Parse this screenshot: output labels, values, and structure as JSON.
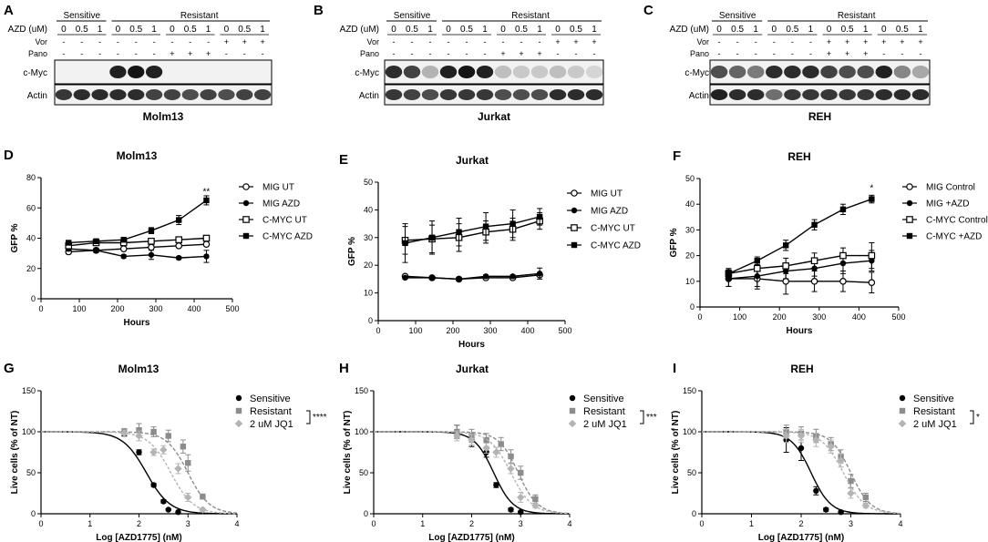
{
  "blots": [
    {
      "letter": "A",
      "title": "Molm13",
      "groups": [
        "Sensitive",
        "Resistant"
      ],
      "row_labels": [
        "AZD (uM)",
        "Vor",
        "Pano"
      ],
      "azd": [
        "0",
        "0.5",
        "1",
        "0",
        "0.5",
        "1",
        "0",
        "0.5",
        "1",
        "0",
        "0.5",
        "1"
      ],
      "vor": [
        "-",
        "-",
        "-",
        "-",
        "-",
        "-",
        "-",
        "-",
        "-",
        "+",
        "+",
        "+"
      ],
      "pano": [
        "-",
        "-",
        "-",
        "-",
        "-",
        "-",
        "+",
        "+",
        "+",
        "-",
        "-",
        "-"
      ],
      "bands": [
        "c-Myc",
        "Actin"
      ],
      "cmyc_intensity": [
        0,
        0,
        0,
        0.9,
        0.95,
        0.9,
        0,
        0,
        0,
        0,
        0,
        0
      ],
      "actin_intensity": [
        0.8,
        0.85,
        0.85,
        0.85,
        0.85,
        0.75,
        0.75,
        0.7,
        0.75,
        0.7,
        0.75,
        0.75
      ]
    },
    {
      "letter": "B",
      "title": "Jurkat",
      "groups": [
        "Sensitive",
        "Resistant"
      ],
      "row_labels": [
        "AZD (uM)",
        "Vor",
        "Pano"
      ],
      "azd": [
        "0",
        "0.5",
        "1",
        "0",
        "0.5",
        "1",
        "0",
        "0.5",
        "1",
        "0",
        "0.5",
        "1"
      ],
      "vor": [
        "-",
        "-",
        "-",
        "-",
        "-",
        "-",
        "-",
        "-",
        "-",
        "+",
        "+",
        "+"
      ],
      "pano": [
        "-",
        "-",
        "-",
        "-",
        "-",
        "-",
        "+",
        "+",
        "+",
        "-",
        "-",
        "-"
      ],
      "bands": [
        "c-Myc",
        "Actin"
      ],
      "cmyc_intensity": [
        0.85,
        0.75,
        0.25,
        0.9,
        0.95,
        0.9,
        0.2,
        0.15,
        0.15,
        0.2,
        0.15,
        0.1
      ],
      "actin_intensity": [
        0.8,
        0.75,
        0.7,
        0.8,
        0.8,
        0.8,
        0.7,
        0.7,
        0.7,
        0.85,
        0.85,
        0.85
      ]
    },
    {
      "letter": "C",
      "title": "REH",
      "groups": [
        "Sensitive",
        "Resistant"
      ],
      "row_labels": [
        "AZD (uM)",
        "Vor",
        "Pano"
      ],
      "azd": [
        "0",
        "0.5",
        "1",
        "0",
        "0.5",
        "1",
        "0",
        "0.5",
        "1",
        "0",
        "0.5",
        "1"
      ],
      "vor": [
        "-",
        "-",
        "-",
        "-",
        "-",
        "-",
        "+",
        "+",
        "+",
        "+",
        "+",
        "+"
      ],
      "pano": [
        "-",
        "-",
        "-",
        "-",
        "-",
        "-",
        "+",
        "+",
        "+",
        "-",
        "-",
        "-"
      ],
      "bands": [
        "c-Myc",
        "Actin"
      ],
      "cmyc_intensity": [
        0.7,
        0.6,
        0.5,
        0.85,
        0.85,
        0.85,
        0.75,
        0.7,
        0.7,
        0.9,
        0.45,
        0.3
      ],
      "actin_intensity": [
        0.9,
        0.85,
        0.85,
        0.55,
        0.8,
        0.8,
        0.8,
        0.8,
        0.8,
        0.85,
        0.85,
        0.85
      ]
    }
  ],
  "chart_data": [
    {
      "letter": "D",
      "type": "line",
      "title": "Molm13",
      "xlabel": "Hours",
      "ylabel": "GFP %",
      "xlim": [
        0,
        500
      ],
      "xticks": [
        0,
        100,
        200,
        300,
        400,
        500
      ],
      "ylim": [
        0,
        80
      ],
      "yticks": [
        0,
        20,
        40,
        60,
        80
      ],
      "x": [
        72,
        144,
        216,
        288,
        360,
        432
      ],
      "series": [
        {
          "name": "MIG UT",
          "marker": "circle-open",
          "values": [
            31,
            32,
            33,
            34,
            35,
            36
          ],
          "err": [
            1.5,
            1,
            1,
            1,
            1,
            1
          ]
        },
        {
          "name": "MIG AZD",
          "marker": "circle-filled",
          "values": [
            33,
            32,
            28,
            29,
            27,
            28
          ],
          "err": [
            1.5,
            1.5,
            1,
            3,
            1,
            4
          ]
        },
        {
          "name": "C-MYC UT",
          "marker": "square-open",
          "values": [
            35,
            37,
            37,
            38,
            39,
            40
          ],
          "err": [
            1.5,
            1,
            1,
            1,
            1,
            1
          ]
        },
        {
          "name": "C-MYC AZD",
          "marker": "square-filled",
          "values": [
            37,
            38,
            39,
            45,
            52,
            65
          ],
          "err": [
            1,
            1,
            1.5,
            2,
            3,
            3
          ]
        }
      ],
      "annotations": [
        {
          "x": 432,
          "y": 70,
          "text": "**"
        }
      ]
    },
    {
      "letter": "E",
      "type": "line",
      "title": "Jurkat",
      "xlabel": "Hours",
      "ylabel": "GFP %",
      "xlim": [
        0,
        500
      ],
      "xticks": [
        0,
        100,
        200,
        300,
        400,
        500
      ],
      "ylim": [
        0,
        50
      ],
      "yticks": [
        0,
        10,
        20,
        30,
        40,
        50
      ],
      "x": [
        72,
        144,
        216,
        288,
        360,
        432
      ],
      "series": [
        {
          "name": "MIG UT",
          "marker": "circle-open",
          "values": [
            16,
            15.5,
            15,
            15.5,
            15.5,
            16.5
          ],
          "err": [
            0.5,
            0.5,
            0.5,
            0.5,
            0.5,
            0.5
          ]
        },
        {
          "name": "MIG AZD",
          "marker": "circle-filled",
          "values": [
            15.5,
            15.5,
            15,
            16,
            16,
            17
          ],
          "err": [
            0.5,
            0.5,
            0.5,
            0.5,
            0.5,
            2
          ]
        },
        {
          "name": "C-MYC UT",
          "marker": "square-open",
          "values": [
            29,
            29.5,
            30,
            32,
            33,
            36
          ],
          "err": [
            5,
            5,
            5,
            4,
            4,
            3
          ]
        },
        {
          "name": "C-MYC AZD",
          "marker": "square-filled",
          "values": [
            28,
            30,
            32,
            34,
            35,
            37.5
          ],
          "err": [
            7,
            6,
            5,
            5,
            5,
            3
          ]
        }
      ],
      "annotations": []
    },
    {
      "letter": "F",
      "type": "line",
      "title": "REH",
      "xlabel": "Hours",
      "ylabel": "GFP %",
      "xlim": [
        0,
        500
      ],
      "xticks": [
        0,
        100,
        200,
        300,
        400,
        500
      ],
      "ylim": [
        0,
        50
      ],
      "yticks": [
        0,
        10,
        20,
        30,
        40,
        50
      ],
      "x": [
        72,
        144,
        216,
        288,
        360,
        432
      ],
      "series": [
        {
          "name": "MIG Control",
          "marker": "circle-open",
          "values": [
            11,
            11,
            10,
            10,
            10,
            9.5
          ],
          "err": [
            3,
            4,
            5,
            4,
            4,
            4
          ]
        },
        {
          "name": "MIG +AZD",
          "marker": "circle-filled",
          "values": [
            11,
            12,
            14,
            15,
            17,
            18
          ],
          "err": [
            3,
            4,
            3,
            3,
            4,
            4
          ]
        },
        {
          "name": "C-MYC Control",
          "marker": "square-open",
          "values": [
            13,
            15,
            16,
            18,
            20,
            20
          ],
          "err": [
            2,
            3,
            3,
            3,
            3,
            5
          ]
        },
        {
          "name": "C-MYC +AZD",
          "marker": "square-filled",
          "values": [
            13,
            18,
            24,
            32,
            38,
            42
          ],
          "err": [
            1.5,
            1.5,
            2,
            2,
            2,
            1.5
          ]
        }
      ],
      "annotations": [
        {
          "x": 432,
          "y": 46,
          "text": "*"
        }
      ]
    },
    {
      "letter": "G",
      "type": "scatter",
      "title": "Molm13",
      "xlabel": "Log [AZD1775] (nM)",
      "ylabel": "Live cells  (% of NT)",
      "xlim": [
        0,
        4
      ],
      "xticks": [
        0,
        1,
        2,
        3,
        4
      ],
      "ylim": [
        0,
        150
      ],
      "yticks": [
        0,
        50,
        100,
        150
      ],
      "series": [
        {
          "name": "Sensitive",
          "marker": "circle",
          "color": "#000000",
          "ec50": 2.15,
          "hill": 1.8,
          "x": [
            1.7,
            2.0,
            2.3,
            2.5,
            2.6,
            2.8
          ],
          "values": [
            98,
            75,
            35,
            15,
            5,
            2
          ],
          "err": [
            3,
            3,
            2,
            2,
            1,
            1
          ]
        },
        {
          "name": "Resistant",
          "marker": "square",
          "color": "#8c8c8c",
          "ec50": 3.0,
          "hill": 2.0,
          "x": [
            1.7,
            2.0,
            2.3,
            2.6,
            2.9,
            3.0,
            3.3
          ],
          "values": [
            100,
            102,
            100,
            95,
            82,
            62,
            21
          ],
          "err": [
            4,
            8,
            6,
            7,
            8,
            10,
            3
          ]
        },
        {
          "name": "2 uM JQ1",
          "marker": "diamond",
          "color": "#b4b4b4",
          "ec50": 2.65,
          "hill": 1.9,
          "x": [
            1.7,
            2.0,
            2.3,
            2.5,
            2.8,
            3.0,
            3.3
          ],
          "values": [
            98,
            95,
            75,
            78,
            55,
            20,
            5
          ],
          "err": [
            4,
            6,
            4,
            5,
            6,
            5,
            2
          ]
        }
      ],
      "significance": "****"
    },
    {
      "letter": "H",
      "type": "scatter",
      "title": "Jurkat",
      "xlabel": "Log [AZD1775] (nM)",
      "ylabel": "Live cells  (% of NT)",
      "xlim": [
        0,
        4
      ],
      "xticks": [
        0,
        1,
        2,
        3,
        4
      ],
      "ylim": [
        0,
        150
      ],
      "yticks": [
        0,
        50,
        100,
        150
      ],
      "series": [
        {
          "name": "Sensitive",
          "marker": "circle",
          "color": "#000000",
          "ec50": 2.45,
          "hill": 2.2,
          "x": [
            1.7,
            2.0,
            2.3,
            2.5,
            2.8,
            3.0
          ],
          "values": [
            100,
            90,
            75,
            35,
            5,
            2
          ],
          "err": [
            8,
            8,
            6,
            3,
            2,
            1
          ]
        },
        {
          "name": "Resistant",
          "marker": "square",
          "color": "#8c8c8c",
          "ec50": 2.95,
          "hill": 2.2,
          "x": [
            1.7,
            2.0,
            2.3,
            2.6,
            2.8,
            3.0,
            3.3
          ],
          "values": [
            100,
            95,
            90,
            85,
            70,
            50,
            18
          ],
          "err": [
            8,
            8,
            8,
            8,
            8,
            8,
            5
          ]
        },
        {
          "name": "2 uM JQ1",
          "marker": "diamond",
          "color": "#b4b4b4",
          "ec50": 2.8,
          "hill": 2.0,
          "x": [
            1.7,
            2.0,
            2.3,
            2.5,
            2.8,
            3.0,
            3.3
          ],
          "values": [
            95,
            90,
            80,
            75,
            55,
            20,
            10
          ],
          "err": [
            6,
            6,
            6,
            6,
            6,
            6,
            3
          ]
        }
      ],
      "significance": "***"
    },
    {
      "letter": "I",
      "type": "scatter",
      "title": "REH",
      "xlabel": "Log [AZD1775] (nM)",
      "ylabel": "Live cells  (% of NT)",
      "xlim": [
        0,
        4
      ],
      "xticks": [
        0,
        1,
        2,
        3,
        4
      ],
      "ylim": [
        0,
        150
      ],
      "yticks": [
        0,
        50,
        100,
        150
      ],
      "series": [
        {
          "name": "Sensitive",
          "marker": "circle",
          "color": "#000000",
          "ec50": 2.2,
          "hill": 2.2,
          "x": [
            1.7,
            2.0,
            2.3,
            2.5,
            2.8
          ],
          "values": [
            90,
            80,
            28,
            5,
            2
          ],
          "err": [
            15,
            15,
            5,
            2,
            1
          ]
        },
        {
          "name": "Resistant",
          "marker": "square",
          "color": "#8c8c8c",
          "ec50": 3.0,
          "hill": 2.2,
          "x": [
            1.7,
            2.0,
            2.3,
            2.6,
            2.8,
            3.0,
            3.3
          ],
          "values": [
            100,
            98,
            95,
            85,
            70,
            40,
            20
          ],
          "err": [
            8,
            8,
            8,
            8,
            8,
            8,
            5
          ]
        },
        {
          "name": "2 uM JQ1",
          "marker": "diamond",
          "color": "#b4b4b4",
          "ec50": 2.85,
          "hill": 2.0,
          "x": [
            1.7,
            2.0,
            2.3,
            2.6,
            2.8,
            3.0,
            3.3
          ],
          "values": [
            95,
            95,
            90,
            82,
            65,
            25,
            10
          ],
          "err": [
            8,
            8,
            8,
            8,
            8,
            6,
            3
          ]
        }
      ],
      "significance": "*"
    }
  ]
}
